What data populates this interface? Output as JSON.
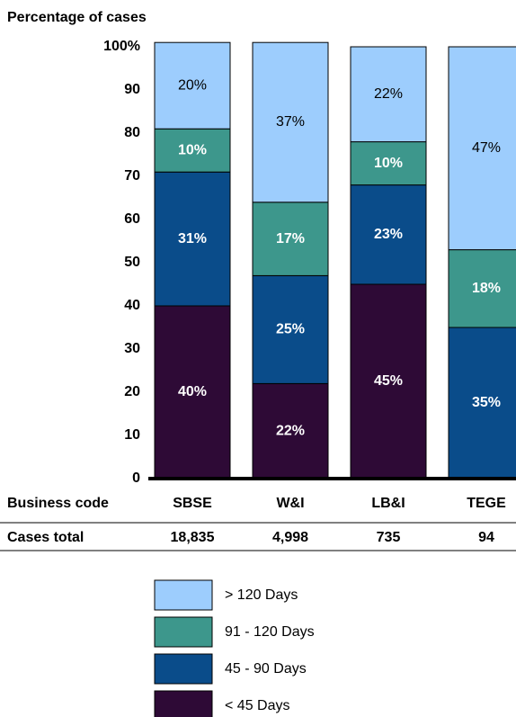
{
  "chart_data": {
    "type": "stacked-bar",
    "title": "Percentage of cases",
    "categories": [
      "SBSE",
      "W&I",
      "LB&I",
      "TEGE"
    ],
    "categories_label": "Business code",
    "cases_total_label": "Cases total",
    "cases_total": [
      "18,835",
      "4,998",
      "735",
      "94"
    ],
    "series": [
      {
        "name": "< 45 Days",
        "color": "#2e0a36",
        "values": [
          40,
          22,
          45,
          0
        ],
        "value_labels": [
          "40%",
          "22%",
          "45%",
          null
        ]
      },
      {
        "name": "45 - 90 Days",
        "color": "#0a4c8a",
        "values": [
          31,
          25,
          23,
          35
        ],
        "value_labels": [
          "31%",
          "25%",
          "23%",
          "35%"
        ]
      },
      {
        "name": "91 - 120 Days",
        "color": "#3d978c",
        "values": [
          10,
          17,
          10,
          18
        ],
        "value_labels": [
          "10%",
          "17%",
          "10%",
          "18%"
        ]
      },
      {
        "name": "> 120 Days",
        "color": "#9dcdfd",
        "values": [
          20,
          37,
          22,
          47
        ],
        "value_labels": [
          "20%",
          "37%",
          "22%",
          "47%"
        ]
      }
    ],
    "ylim": [
      0,
      100
    ],
    "yticks": [
      0,
      10,
      20,
      30,
      40,
      50,
      60,
      70,
      80,
      90,
      {
        "value": 100,
        "label": "100%"
      }
    ]
  }
}
